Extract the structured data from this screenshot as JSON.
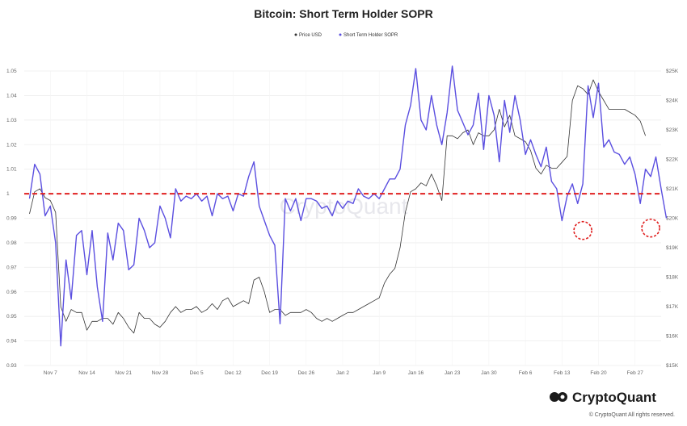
{
  "chart_data": {
    "type": "line",
    "title": "Bitcoin: Short Term Holder SOPR",
    "legend": [
      {
        "label": "Price USD",
        "color": "#333333"
      },
      {
        "label": "Short Term Holder SOPR",
        "color": "#5b4fe0"
      }
    ],
    "legend_position": "top-center",
    "grid": true,
    "y_left": {
      "ticks": [
        "0.93",
        "0.94",
        "0.95",
        "0.96",
        "0.97",
        "0.98",
        "0.99",
        "1",
        "1.01",
        "1.02",
        "1.03",
        "1.04",
        "1.05"
      ],
      "range": [
        0.93,
        1.05
      ]
    },
    "y_right": {
      "ticks": [
        "$15K",
        "$16K",
        "$17K",
        "$18K",
        "$19K",
        "$20K",
        "$21K",
        "$22K",
        "$23K",
        "$24K",
        "$25K"
      ],
      "range": [
        15000,
        25000
      ]
    },
    "x_ticks": [
      "Nov 7",
      "Nov 14",
      "Nov 21",
      "Nov 28",
      "Dec 5",
      "Dec 12",
      "Dec 19",
      "Dec 26",
      "Jan 2",
      "Jan 9",
      "Jan 16",
      "Jan 23",
      "Jan 30",
      "Feb 6",
      "Feb 13",
      "Feb 20",
      "Feb 27"
    ],
    "x_range_days": [
      -5,
      117
    ],
    "reference_line": {
      "value": 1.0,
      "color": "#e02020",
      "style": "dashed"
    },
    "highlight_circles": [
      {
        "x_day": 102,
        "y": 0.985
      },
      {
        "x_day": 115,
        "y": 0.986
      }
    ],
    "series": [
      {
        "name": "Short Term Holder SOPR",
        "color": "#5b4fe0",
        "axis": "left",
        "x_start_day": -4,
        "values": [
          0.998,
          1.012,
          1.008,
          0.991,
          0.995,
          0.98,
          0.938,
          0.973,
          0.957,
          0.983,
          0.985,
          0.967,
          0.985,
          0.962,
          0.948,
          0.984,
          0.973,
          0.988,
          0.985,
          0.969,
          0.971,
          0.99,
          0.985,
          0.978,
          0.98,
          0.995,
          0.99,
          0.982,
          1.002,
          0.997,
          0.999,
          0.998,
          1.0,
          0.997,
          0.999,
          0.991,
          1.0,
          0.998,
          0.999,
          0.993,
          1.0,
          0.999,
          1.007,
          1.013,
          0.995,
          0.989,
          0.983,
          0.979,
          0.947,
          0.998,
          0.993,
          0.998,
          0.989,
          0.998,
          0.998,
          0.997,
          0.994,
          0.995,
          0.991,
          0.997,
          0.994,
          0.997,
          0.996,
          1.002,
          0.999,
          0.998,
          1.0,
          0.998,
          1.002,
          1.006,
          1.006,
          1.01,
          1.028,
          1.036,
          1.051,
          1.03,
          1.026,
          1.04,
          1.028,
          1.02,
          1.033,
          1.052,
          1.034,
          1.029,
          1.024,
          1.028,
          1.041,
          1.018,
          1.04,
          1.032,
          1.013,
          1.038,
          1.025,
          1.04,
          1.03,
          1.016,
          1.022,
          1.016,
          1.011,
          1.019,
          1.005,
          1.002,
          0.989,
          0.999,
          1.004,
          0.996,
          1.004,
          1.044,
          1.031,
          1.045,
          1.019,
          1.022,
          1.017,
          1.016,
          1.012,
          1.015,
          1.008,
          0.996,
          1.01,
          1.007,
          1.015,
          1.002,
          0.99
        ]
      },
      {
        "name": "Price USD",
        "color": "#333333",
        "axis": "right",
        "x_start_day": -4,
        "values": [
          20150,
          20900,
          21000,
          20700,
          20600,
          20200,
          17000,
          16500,
          16900,
          16800,
          16800,
          16200,
          16500,
          16500,
          16600,
          16600,
          16400,
          16800,
          16600,
          16300,
          16100,
          16800,
          16600,
          16600,
          16400,
          16300,
          16500,
          16800,
          17000,
          16800,
          16900,
          16900,
          17000,
          16800,
          16900,
          17100,
          16900,
          17200,
          17300,
          17000,
          17100,
          17200,
          17100,
          17900,
          18000,
          17500,
          16800,
          16900,
          16900,
          16700,
          16800,
          16800,
          16800,
          16900,
          16800,
          16600,
          16500,
          16600,
          16500,
          16600,
          16700,
          16800,
          16800,
          16900,
          17000,
          17100,
          17200,
          17300,
          17800,
          18100,
          18300,
          19000,
          20200,
          20900,
          21000,
          21200,
          21100,
          21500,
          21100,
          20600,
          22800,
          22800,
          22700,
          22900,
          23000,
          22500,
          22900,
          22800,
          22800,
          23000,
          23700,
          23100,
          23500,
          22800,
          22700,
          22600,
          22300,
          21700,
          21500,
          21800,
          21700,
          21700,
          21900,
          22100,
          24000,
          24500,
          24400,
          24200,
          24700,
          24300,
          24000,
          23700,
          23700,
          23700,
          23700,
          23600,
          23500,
          23300,
          22800
        ]
      }
    ]
  },
  "watermark": "CryptoQuant",
  "brand": {
    "name": "CryptoQuant",
    "copyright": "© CryptoQuant All rights reserved."
  }
}
